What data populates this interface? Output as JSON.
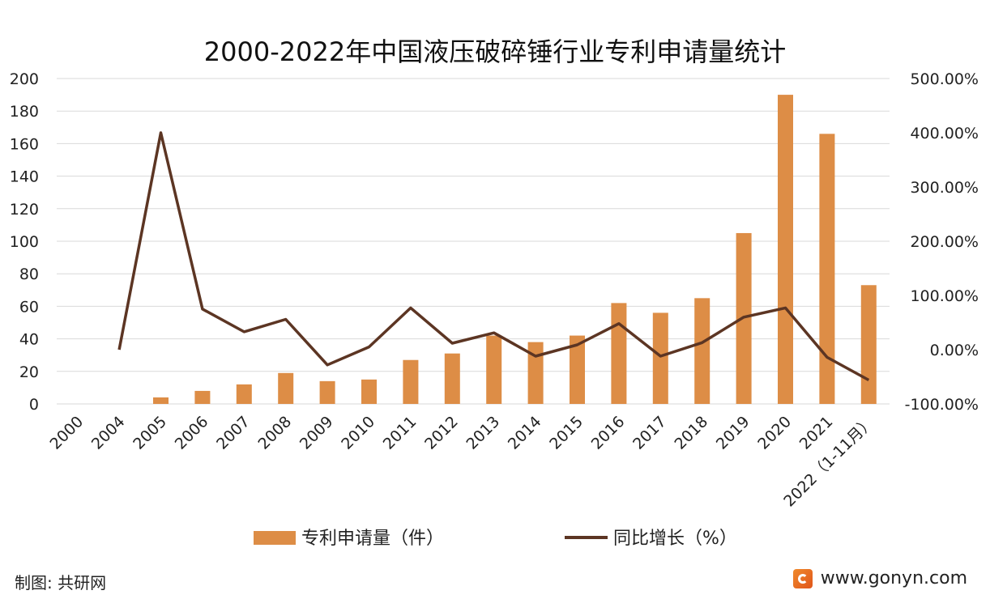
{
  "chart_data": {
    "type": "bar+line",
    "title": "2000-2022年中国液压破碎锤行业专利申请量统计",
    "categories": [
      "2000",
      "2004",
      "2005",
      "2006",
      "2007",
      "2008",
      "2009",
      "2010",
      "2011",
      "2012",
      "2013",
      "2014",
      "2015",
      "2016",
      "2017",
      "2018",
      "2019",
      "2020",
      "2021",
      "2022（1-11月）"
    ],
    "series": [
      {
        "name": "专利申请量（件）",
        "type": "bar",
        "axis": "left",
        "color": "#dd8d46",
        "values": [
          0,
          0,
          4,
          8,
          12,
          19,
          14,
          15,
          27,
          31,
          42,
          38,
          42,
          62,
          56,
          65,
          105,
          190,
          166,
          73
        ]
      },
      {
        "name": "同比增长（%）",
        "type": "line",
        "axis": "right",
        "color": "#5c3523",
        "values": [
          null,
          0,
          400,
          75,
          33,
          56,
          -28,
          5,
          77,
          12,
          31,
          -12,
          9,
          48,
          -12,
          13,
          60,
          77,
          -14,
          -56
        ]
      }
    ],
    "y_left": {
      "min": 0,
      "max": 200,
      "ticks": [
        0,
        20,
        40,
        60,
        80,
        100,
        120,
        140,
        160,
        180,
        200
      ],
      "tick_labels": [
        "0",
        "20",
        "40",
        "60",
        "80",
        "100",
        "120",
        "140",
        "160",
        "180",
        "200"
      ]
    },
    "y_right": {
      "min": -100,
      "max": 500,
      "ticks": [
        -100,
        0,
        100,
        200,
        300,
        400,
        500
      ],
      "tick_labels": [
        "-100.00%",
        "0.00%",
        "100.00%",
        "200.00%",
        "300.00%",
        "400.00%",
        "500.00%"
      ]
    },
    "grid": true,
    "legend_position": "bottom"
  },
  "footer": {
    "source_label": "制图: 共研网",
    "website": "www.gonyn.com"
  },
  "colors": {
    "bar": "#dd8d46",
    "line": "#5c3523",
    "grid": "#d9d9d9"
  }
}
